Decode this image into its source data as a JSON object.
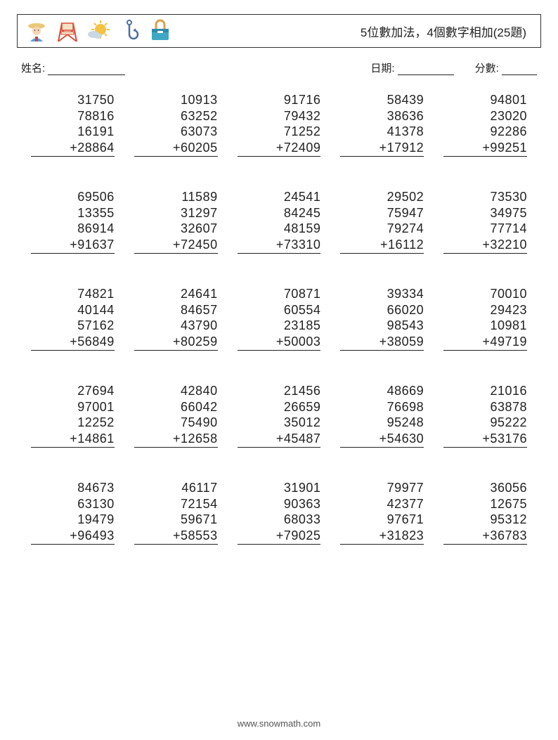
{
  "title": "5位數加法，4個數字相加(25題)",
  "labels": {
    "name": "姓名:",
    "date": "日期:",
    "score": "分數:"
  },
  "blank_widths": {
    "name": 110,
    "date": 80,
    "score": 50
  },
  "style": {
    "background_color": "#ffffff",
    "border_color": "#333333",
    "text_color": "#222222",
    "font_size_problem": 18,
    "font_size_title": 17,
    "font_size_meta": 15,
    "grid_cols": 5,
    "grid_rows": 5,
    "col_gap": 28,
    "row_gap": 46,
    "operator": "+"
  },
  "icon_colors": {
    "farmer_hat": "#e8c97a",
    "farmer_face": "#f5d6b3",
    "farmer_shirt": "#5a9fd4",
    "chair": "#d94f3a",
    "chair_canvas": "#f2e3c6",
    "sun": "#f6c244",
    "cloud": "#c9d8e3",
    "hook": "#4a6fa5",
    "toolbox": "#3fa7c4",
    "toolbox_handle": "#d9a24a"
  },
  "problems": [
    [
      31750,
      78816,
      16191,
      28864
    ],
    [
      10913,
      63252,
      63073,
      60205
    ],
    [
      91716,
      79432,
      71252,
      72409
    ],
    [
      58439,
      38636,
      41378,
      17912
    ],
    [
      94801,
      23020,
      92286,
      99251
    ],
    [
      69506,
      13355,
      86914,
      91637
    ],
    [
      11589,
      31297,
      32607,
      72450
    ],
    [
      24541,
      84245,
      48159,
      73310
    ],
    [
      29502,
      75947,
      79274,
      16112
    ],
    [
      73530,
      34975,
      77714,
      32210
    ],
    [
      74821,
      40144,
      57162,
      56849
    ],
    [
      24641,
      84657,
      43790,
      80259
    ],
    [
      70871,
      60554,
      23185,
      50003
    ],
    [
      39334,
      66020,
      98543,
      38059
    ],
    [
      70010,
      29423,
      10981,
      49719
    ],
    [
      27694,
      97001,
      12252,
      14861
    ],
    [
      42840,
      66042,
      75490,
      12658
    ],
    [
      21456,
      26659,
      35012,
      45487
    ],
    [
      48669,
      76698,
      95248,
      54630
    ],
    [
      21016,
      63878,
      95222,
      53176
    ],
    [
      84673,
      63130,
      19479,
      96493
    ],
    [
      46117,
      72154,
      59671,
      58553
    ],
    [
      31901,
      90363,
      68033,
      79025
    ],
    [
      79977,
      42377,
      97671,
      31823
    ],
    [
      36056,
      12675,
      95312,
      36783
    ]
  ],
  "footer": "www.snowmath.com"
}
